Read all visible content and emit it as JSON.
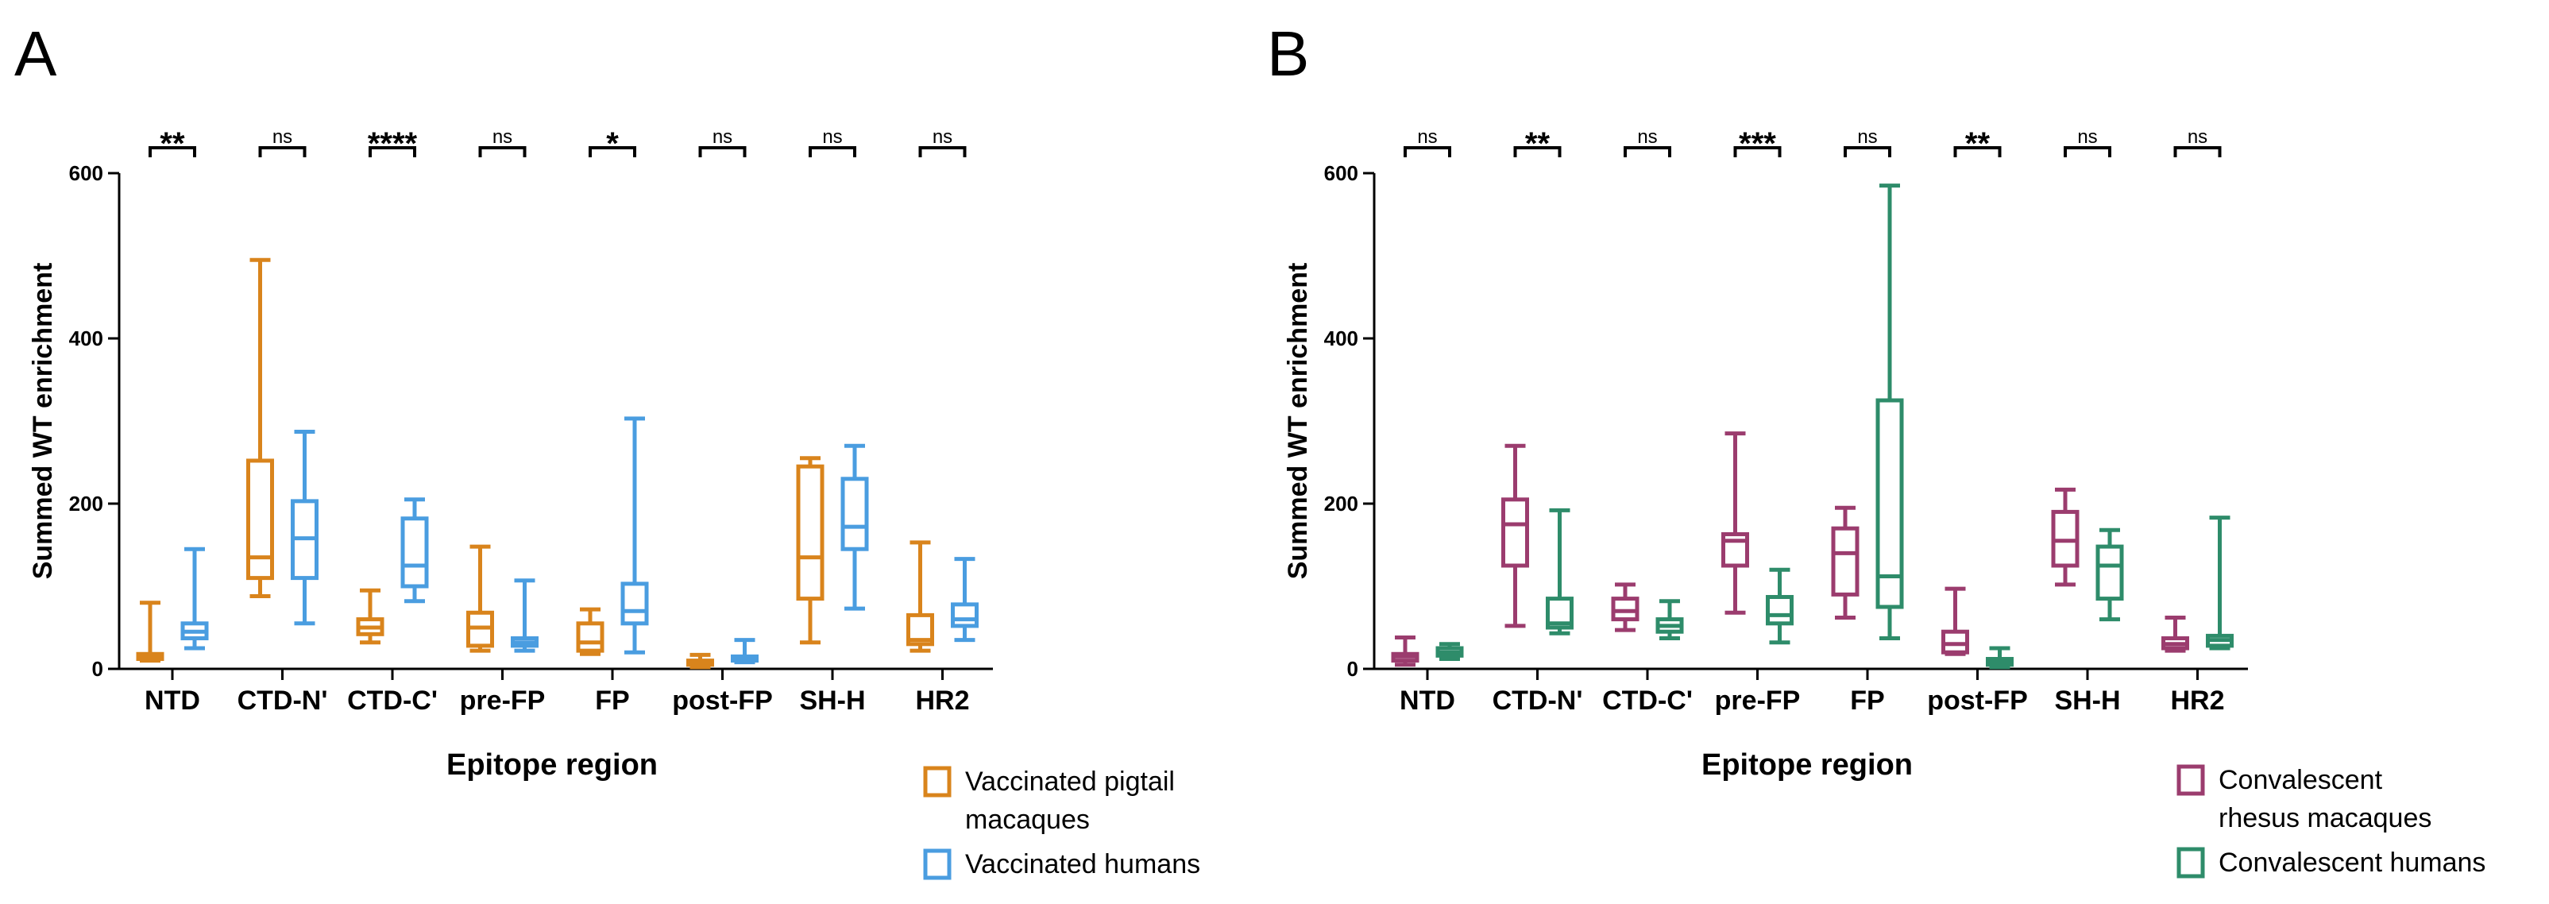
{
  "panels": [
    {
      "panel_label": "A",
      "colors": [
        "#D9841C",
        "#4A9DE0"
      ],
      "legend": [
        "Vaccinated pigtail\nmacaques",
        "Vaccinated humans"
      ]
    },
    {
      "panel_label": "B",
      "colors": [
        "#9B3C6E",
        "#2E8C6A"
      ],
      "legend": [
        "Convalescent\nrhesus macaques",
        "Convalescent humans"
      ]
    }
  ],
  "chart_data": [
    {
      "type": "boxplot",
      "panel": "A",
      "xlabel": "Epitope region",
      "ylabel": "Summed WT enrichment",
      "ylim": [
        0,
        600
      ],
      "yticks": [
        0,
        200,
        400,
        600
      ],
      "categories": [
        "NTD",
        "CTD-N'",
        "CTD-C'",
        "pre-FP",
        "FP",
        "post-FP",
        "SH-H",
        "HR2"
      ],
      "significance": [
        "**",
        "ns",
        "****",
        "ns",
        "*",
        "ns",
        "ns",
        "ns"
      ],
      "series": [
        {
          "name": "Vaccinated pigtail macaques",
          "boxes": [
            {
              "min": 10,
              "q1": 12,
              "median": 15,
              "q3": 18,
              "max": 80
            },
            {
              "min": 88,
              "q1": 110,
              "median": 135,
              "q3": 252,
              "max": 495
            },
            {
              "min": 32,
              "q1": 42,
              "median": 50,
              "q3": 60,
              "max": 95
            },
            {
              "min": 22,
              "q1": 28,
              "median": 50,
              "q3": 68,
              "max": 148
            },
            {
              "min": 18,
              "q1": 22,
              "median": 32,
              "q3": 55,
              "max": 72
            },
            {
              "min": 2,
              "q1": 5,
              "median": 8,
              "q3": 10,
              "max": 17
            },
            {
              "min": 32,
              "q1": 85,
              "median": 135,
              "q3": 245,
              "max": 255
            },
            {
              "min": 22,
              "q1": 30,
              "median": 35,
              "q3": 65,
              "max": 153
            }
          ]
        },
        {
          "name": "Vaccinated humans",
          "boxes": [
            {
              "min": 25,
              "q1": 37,
              "median": 45,
              "q3": 55,
              "max": 145
            },
            {
              "min": 55,
              "q1": 110,
              "median": 158,
              "q3": 203,
              "max": 287
            },
            {
              "min": 82,
              "q1": 100,
              "median": 125,
              "q3": 182,
              "max": 205
            },
            {
              "min": 22,
              "q1": 28,
              "median": 32,
              "q3": 37,
              "max": 107
            },
            {
              "min": 20,
              "q1": 55,
              "median": 70,
              "q3": 103,
              "max": 303
            },
            {
              "min": 8,
              "q1": 10,
              "median": 12,
              "q3": 15,
              "max": 35
            },
            {
              "min": 73,
              "q1": 145,
              "median": 172,
              "q3": 230,
              "max": 270
            },
            {
              "min": 35,
              "q1": 52,
              "median": 60,
              "q3": 78,
              "max": 133
            }
          ]
        }
      ]
    },
    {
      "type": "boxplot",
      "panel": "B",
      "xlabel": "Epitope region",
      "ylabel": "Summed WT enrichment",
      "ylim": [
        0,
        600
      ],
      "yticks": [
        0,
        200,
        400,
        600
      ],
      "categories": [
        "NTD",
        "CTD-N'",
        "CTD-C'",
        "pre-FP",
        "FP",
        "post-FP",
        "SH-H",
        "HR2"
      ],
      "significance": [
        "ns",
        "**",
        "ns",
        "***",
        "ns",
        "**",
        "ns",
        "ns"
      ],
      "series": [
        {
          "name": "Convalescent rhesus macaques",
          "boxes": [
            {
              "min": 5,
              "q1": 10,
              "median": 15,
              "q3": 18,
              "max": 38
            },
            {
              "min": 52,
              "q1": 125,
              "median": 175,
              "q3": 205,
              "max": 270
            },
            {
              "min": 47,
              "q1": 60,
              "median": 70,
              "q3": 85,
              "max": 102
            },
            {
              "min": 68,
              "q1": 125,
              "median": 155,
              "q3": 163,
              "max": 285
            },
            {
              "min": 62,
              "q1": 90,
              "median": 140,
              "q3": 170,
              "max": 195
            },
            {
              "min": 18,
              "q1": 20,
              "median": 30,
              "q3": 45,
              "max": 97
            },
            {
              "min": 102,
              "q1": 125,
              "median": 155,
              "q3": 190,
              "max": 217
            },
            {
              "min": 22,
              "q1": 25,
              "median": 30,
              "q3": 37,
              "max": 62
            }
          ]
        },
        {
          "name": "Convalescent humans",
          "boxes": [
            {
              "min": 12,
              "q1": 16,
              "median": 20,
              "q3": 25,
              "max": 30
            },
            {
              "min": 43,
              "q1": 50,
              "median": 55,
              "q3": 85,
              "max": 192
            },
            {
              "min": 37,
              "q1": 45,
              "median": 52,
              "q3": 60,
              "max": 82
            },
            {
              "min": 32,
              "q1": 55,
              "median": 65,
              "q3": 87,
              "max": 120
            },
            {
              "min": 37,
              "q1": 75,
              "median": 112,
              "q3": 325,
              "max": 585
            },
            {
              "min": 2,
              "q1": 5,
              "median": 8,
              "q3": 12,
              "max": 25
            },
            {
              "min": 60,
              "q1": 85,
              "median": 125,
              "q3": 148,
              "max": 168
            },
            {
              "min": 25,
              "q1": 28,
              "median": 35,
              "q3": 40,
              "max": 183
            }
          ]
        }
      ]
    }
  ]
}
